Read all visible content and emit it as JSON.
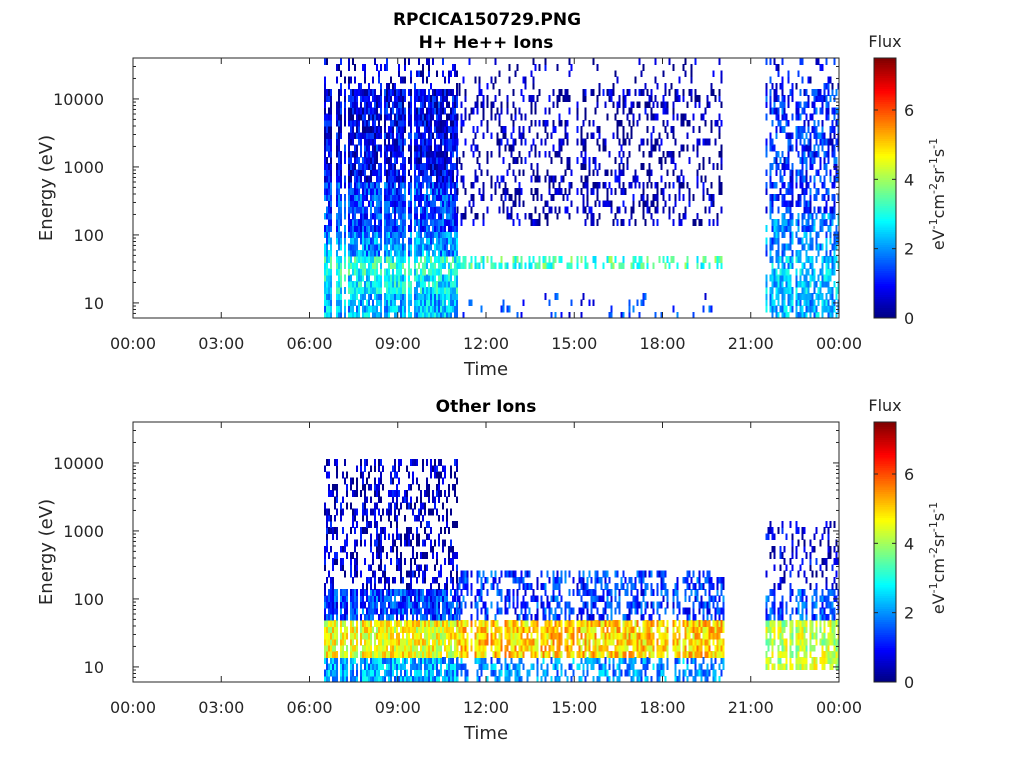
{
  "figure_title": "RPCICA150729.PNG",
  "chart_data": [
    {
      "type": "heatmap",
      "title": "H+ He++ Ions",
      "xlabel": "Time",
      "ylabel": "Energy (eV)",
      "x_tick_labels": [
        "00:00",
        "03:00",
        "06:00",
        "09:00",
        "12:00",
        "15:00",
        "18:00",
        "21:00",
        "00:00"
      ],
      "x_hours": [
        0,
        3,
        6,
        9,
        12,
        15,
        18,
        21,
        24
      ],
      "xlim_hours": [
        0,
        24
      ],
      "y_scale": "log",
      "y_ticks": [
        10,
        100,
        1000,
        10000
      ],
      "y_tick_labels": [
        "10",
        "100",
        "1000",
        "10000"
      ],
      "ylim": [
        6,
        40000
      ],
      "colorbar": {
        "label": "Flux",
        "unit_label": "eV-1cm-2sr-1s-1",
        "unit_display": [
          "eV",
          "-1",
          "cm",
          "-2",
          "sr",
          "-1",
          "s",
          "-1"
        ],
        "ticks": [
          0,
          2,
          4,
          6
        ],
        "tick_labels": [
          "0",
          "2",
          "4",
          "6"
        ],
        "range": [
          0,
          7.5
        ],
        "colormap": "jet"
      },
      "regions": [
        {
          "start_hour": 6.5,
          "end_hour": 11.0,
          "bands": [
            {
              "emin": 6,
              "emax": 14,
              "flux": 2.3,
              "density": 0.9
            },
            {
              "emin": 14,
              "emax": 25,
              "flux": 2.7,
              "density": 0.9
            },
            {
              "emin": 25,
              "emax": 45,
              "flux": 3.0,
              "density": 0.85
            },
            {
              "emin": 45,
              "emax": 120,
              "flux": 2.0,
              "density": 0.9
            },
            {
              "emin": 120,
              "emax": 600,
              "flux": 1.4,
              "density": 0.9
            },
            {
              "emin": 600,
              "emax": 15000,
              "flux": 0.8,
              "density": 0.85
            },
            {
              "emin": 15000,
              "emax": 40000,
              "flux": 0.6,
              "density": 0.3
            }
          ]
        },
        {
          "start_hour": 11.0,
          "end_hour": 20.1,
          "bands": [
            {
              "emin": 6,
              "emax": 14,
              "flux": 1.2,
              "density": 0.1
            },
            {
              "emin": 30,
              "emax": 45,
              "flux": 3.3,
              "density": 0.5
            },
            {
              "emin": 150,
              "emax": 15000,
              "flux": 0.3,
              "density": 0.3
            },
            {
              "emin": 15000,
              "emax": 40000,
              "flux": 0.3,
              "density": 0.1
            }
          ]
        },
        {
          "start_hour": 21.5,
          "end_hour": 24.0,
          "bands": [
            {
              "emin": 6,
              "emax": 14,
              "flux": 2.2,
              "density": 0.7
            },
            {
              "emin": 14,
              "emax": 45,
              "flux": 2.4,
              "density": 0.7
            },
            {
              "emin": 45,
              "emax": 200,
              "flux": 1.9,
              "density": 0.6
            },
            {
              "emin": 200,
              "emax": 15000,
              "flux": 1.2,
              "density": 0.5
            },
            {
              "emin": 15000,
              "emax": 40000,
              "flux": 0.8,
              "density": 0.2
            }
          ]
        }
      ]
    },
    {
      "type": "heatmap",
      "title": "Other Ions",
      "xlabel": "Time",
      "ylabel": "Energy (eV)",
      "x_tick_labels": [
        "00:00",
        "03:00",
        "06:00",
        "09:00",
        "12:00",
        "15:00",
        "18:00",
        "21:00",
        "00:00"
      ],
      "x_hours": [
        0,
        3,
        6,
        9,
        12,
        15,
        18,
        21,
        24
      ],
      "xlim_hours": [
        0,
        24
      ],
      "y_scale": "log",
      "y_ticks": [
        10,
        100,
        1000,
        10000
      ],
      "y_tick_labels": [
        "10",
        "100",
        "1000",
        "10000"
      ],
      "ylim": [
        6,
        40000
      ],
      "colorbar": {
        "label": "Flux",
        "unit_label": "eV-1cm-2sr-1s-1",
        "unit_display": [
          "eV",
          "-1",
          "cm",
          "-2",
          "sr",
          "-1",
          "s",
          "-1"
        ],
        "ticks": [
          0,
          2,
          4,
          6
        ],
        "tick_labels": [
          "0",
          "2",
          "4",
          "6"
        ],
        "range": [
          0,
          7.5
        ],
        "colormap": "jet"
      },
      "regions": [
        {
          "start_hour": 6.5,
          "end_hour": 11.0,
          "bands": [
            {
              "emin": 6,
              "emax": 14,
              "flux": 2.2,
              "density": 0.85
            },
            {
              "emin": 14,
              "emax": 45,
              "flux": 4.6,
              "density": 0.9
            },
            {
              "emin": 45,
              "emax": 130,
              "flux": 1.4,
              "density": 0.85
            },
            {
              "emin": 130,
              "emax": 11000,
              "flux": 0.5,
              "density": 0.4
            }
          ]
        },
        {
          "start_hour": 11.0,
          "end_hour": 20.1,
          "bands": [
            {
              "emin": 6,
              "emax": 14,
              "flux": 2.0,
              "density": 0.5
            },
            {
              "emin": 14,
              "emax": 45,
              "flux": 5.0,
              "density": 0.85
            },
            {
              "emin": 45,
              "emax": 250,
              "flux": 1.3,
              "density": 0.5
            }
          ]
        },
        {
          "start_hour": 21.5,
          "end_hour": 24.0,
          "bands": [
            {
              "emin": 10,
              "emax": 45,
              "flux": 4.2,
              "density": 0.8
            },
            {
              "emin": 45,
              "emax": 150,
              "flux": 1.5,
              "density": 0.6
            },
            {
              "emin": 150,
              "emax": 1500,
              "flux": 0.6,
              "density": 0.3
            }
          ]
        }
      ]
    }
  ]
}
